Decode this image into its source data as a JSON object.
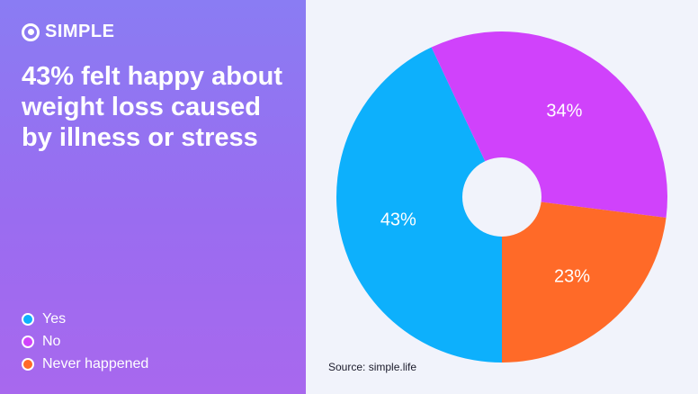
{
  "brand": {
    "name": "SIMPLE",
    "icon": "simple-logo-icon"
  },
  "headline": "43% felt happy about weight loss caused by illness or stress",
  "source": "Source: simple.life",
  "chart_data": {
    "type": "pie",
    "donut": true,
    "slices": [
      {
        "label": "Yes",
        "value": 43,
        "display": "43%",
        "color": "#0db0fc"
      },
      {
        "label": "No",
        "value": 34,
        "display": "34%",
        "color": "#d042fb"
      },
      {
        "label": "Never happened",
        "value": 23,
        "display": "23%",
        "color": "#ff6a28"
      }
    ],
    "start_angle_deg": 90,
    "direction": "clockwise",
    "legend_position": "bottom-left"
  }
}
